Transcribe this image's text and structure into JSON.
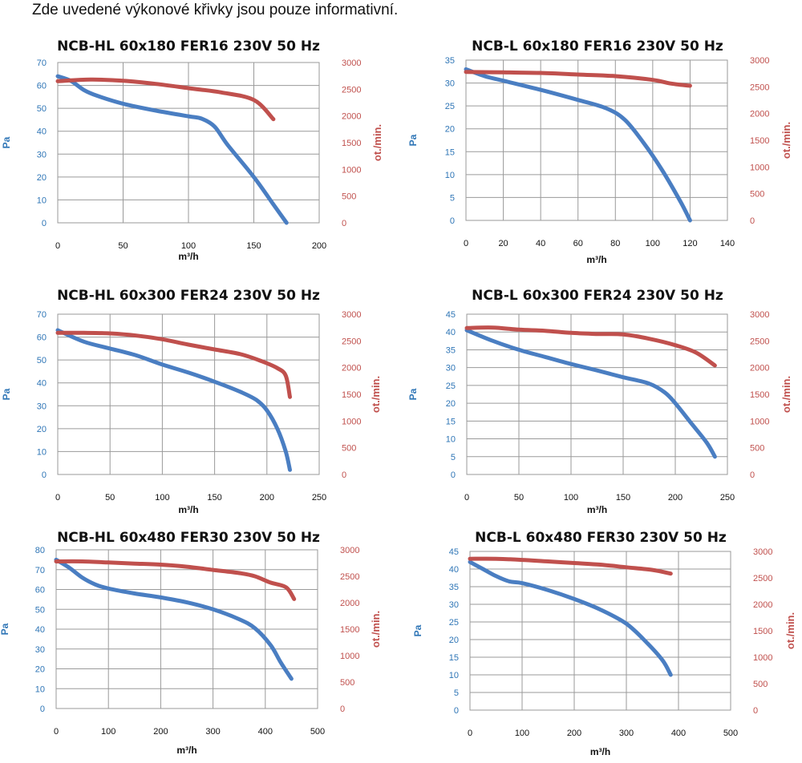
{
  "note": "Zde uvedené výkonové křivky jsou pouze informativní.",
  "colors": {
    "pressure": "#4a7ec2",
    "speed": "#c0504d",
    "grid": "#9a9a9a",
    "plot_bg": "#ffffff"
  },
  "chart_data": [
    {
      "type": "line",
      "title": "NCB-HL 60x180 FER16 230V 50 Hz",
      "xlabel": "m³/h",
      "ylabel": "Pa",
      "y2label": "ot./min.",
      "xlim": [
        0,
        200
      ],
      "ylim": [
        0,
        70
      ],
      "y2lim": [
        0,
        3000
      ],
      "xticks": [
        0,
        50,
        100,
        150,
        200
      ],
      "yticks": [
        0,
        10,
        20,
        30,
        40,
        50,
        60,
        70
      ],
      "y2ticks": [
        0,
        500,
        1000,
        1500,
        2000,
        2500,
        3000
      ],
      "grid": true,
      "series": [
        {
          "axis": "left",
          "x": [
            0,
            10,
            20,
            30,
            50,
            75,
            100,
            110,
            120,
            130,
            150,
            165,
            175
          ],
          "y": [
            64,
            62,
            58,
            55.5,
            52,
            49,
            46.5,
            45.5,
            42,
            34,
            20,
            8,
            0
          ]
        },
        {
          "axis": "right",
          "x": [
            0,
            25,
            50,
            75,
            100,
            125,
            150,
            165
          ],
          "y": [
            2650,
            2680,
            2660,
            2600,
            2520,
            2440,
            2300,
            1940
          ]
        }
      ]
    },
    {
      "type": "line",
      "title": "NCB-L 60x180 FER16 230V 50 Hz",
      "xlabel": "m³/h",
      "ylabel": "Pa",
      "y2label": "ot./min.",
      "xlim": [
        0,
        140
      ],
      "ylim": [
        0,
        35
      ],
      "y2lim": [
        0,
        3000
      ],
      "xticks": [
        0,
        20,
        40,
        60,
        80,
        100,
        120,
        140
      ],
      "yticks": [
        0,
        5,
        10,
        15,
        20,
        25,
        30,
        35
      ],
      "y2ticks": [
        0,
        500,
        1000,
        1500,
        2000,
        2500,
        3000
      ],
      "grid": true,
      "series": [
        {
          "axis": "left",
          "x": [
            0,
            10,
            20,
            40,
            60,
            75,
            85,
            95,
            105,
            115,
            120
          ],
          "y": [
            33,
            31.5,
            30.5,
            28.5,
            26.3,
            24.5,
            22,
            17,
            11,
            4,
            0
          ]
        },
        {
          "axis": "right",
          "x": [
            0,
            20,
            40,
            60,
            80,
            100,
            110,
            120
          ],
          "y": [
            2780,
            2770,
            2760,
            2730,
            2700,
            2630,
            2560,
            2520
          ]
        }
      ]
    },
    {
      "type": "line",
      "title": "NCB-HL 60x300 FER24 230V 50 Hz",
      "xlabel": "m³/h",
      "ylabel": "Pa",
      "y2label": "ot./min.",
      "xlim": [
        0,
        250
      ],
      "ylim": [
        0,
        70
      ],
      "y2lim": [
        0,
        3000
      ],
      "xticks": [
        0,
        50,
        100,
        150,
        200,
        250
      ],
      "yticks": [
        0,
        10,
        20,
        30,
        40,
        50,
        60,
        70
      ],
      "y2ticks": [
        0,
        500,
        1000,
        1500,
        2000,
        2500,
        3000
      ],
      "grid": true,
      "series": [
        {
          "axis": "left",
          "x": [
            0,
            25,
            50,
            75,
            100,
            125,
            150,
            175,
            190,
            200,
            210,
            218,
            222
          ],
          "y": [
            63,
            58,
            55,
            52,
            48,
            44.5,
            40.5,
            36,
            32.5,
            28,
            20,
            10,
            2
          ]
        },
        {
          "axis": "right",
          "x": [
            0,
            25,
            50,
            75,
            100,
            125,
            150,
            175,
            195,
            210,
            218,
            222
          ],
          "y": [
            2650,
            2650,
            2640,
            2600,
            2530,
            2430,
            2340,
            2250,
            2120,
            1990,
            1850,
            1450
          ]
        }
      ]
    },
    {
      "type": "line",
      "title": "NCB-L 60x300 FER24 230V 50 Hz",
      "xlabel": "m³/h",
      "ylabel": "Pa",
      "y2label": "ot./min.",
      "xlim": [
        0,
        250
      ],
      "ylim": [
        0,
        45
      ],
      "y2lim": [
        0,
        3000
      ],
      "xticks": [
        0,
        50,
        100,
        150,
        200,
        250
      ],
      "yticks": [
        0,
        5,
        10,
        15,
        20,
        25,
        30,
        35,
        40,
        45
      ],
      "y2ticks": [
        0,
        500,
        1000,
        1500,
        2000,
        2500,
        3000
      ],
      "grid": true,
      "series": [
        {
          "axis": "left",
          "x": [
            0,
            25,
            50,
            75,
            100,
            125,
            150,
            175,
            190,
            200,
            215,
            230,
            238
          ],
          "y": [
            40.5,
            37.5,
            35,
            33,
            31,
            29.2,
            27.3,
            25.5,
            23,
            20,
            14.5,
            9,
            5
          ]
        },
        {
          "axis": "right",
          "x": [
            0,
            25,
            50,
            75,
            100,
            125,
            150,
            175,
            200,
            220,
            238
          ],
          "y": [
            2740,
            2750,
            2710,
            2690,
            2650,
            2630,
            2620,
            2540,
            2420,
            2280,
            2040
          ]
        }
      ]
    },
    {
      "type": "line",
      "title": "NCB-HL 60x480 FER30 230V 50 Hz",
      "xlabel": "m³/h",
      "ylabel": "Pa",
      "y2label": "ot./min.",
      "xlim": [
        0,
        500
      ],
      "ylim": [
        0,
        80
      ],
      "y2lim": [
        0,
        3000
      ],
      "xticks": [
        0,
        100,
        200,
        300,
        400,
        500
      ],
      "yticks": [
        0,
        10,
        20,
        30,
        40,
        50,
        60,
        70,
        80
      ],
      "y2ticks": [
        0,
        500,
        1000,
        1500,
        2000,
        2500,
        3000
      ],
      "grid": true,
      "series": [
        {
          "axis": "left",
          "x": [
            0,
            25,
            50,
            75,
            100,
            150,
            200,
            250,
            300,
            350,
            380,
            410,
            430,
            450
          ],
          "y": [
            75,
            71,
            66,
            62.5,
            60.5,
            58,
            56,
            53.5,
            50,
            45,
            40.5,
            32,
            23,
            15
          ]
        },
        {
          "axis": "right",
          "x": [
            0,
            50,
            100,
            150,
            200,
            250,
            300,
            350,
            380,
            410,
            440,
            455
          ],
          "y": [
            2780,
            2780,
            2760,
            2740,
            2720,
            2680,
            2620,
            2560,
            2500,
            2380,
            2290,
            2070
          ]
        }
      ]
    },
    {
      "type": "line",
      "title": "NCB-L 60x480 FER30 230V 50 Hz",
      "xlabel": "m³/h",
      "ylabel": "Pa",
      "y2label": "ot./min.",
      "xlim": [
        0,
        500
      ],
      "ylim": [
        0,
        45
      ],
      "y2lim": [
        0,
        3000
      ],
      "xticks": [
        0,
        100,
        200,
        300,
        400,
        500
      ],
      "yticks": [
        0,
        5,
        10,
        15,
        20,
        25,
        30,
        35,
        40,
        45
      ],
      "y2ticks": [
        0,
        500,
        1000,
        1500,
        2000,
        2500,
        3000
      ],
      "grid": true,
      "series": [
        {
          "axis": "left",
          "x": [
            0,
            25,
            50,
            75,
            100,
            150,
            200,
            250,
            300,
            340,
            370,
            385
          ],
          "y": [
            42,
            40,
            38,
            36.5,
            36,
            34,
            31.5,
            28.5,
            24.5,
            19,
            14,
            10
          ]
        },
        {
          "axis": "right",
          "x": [
            0,
            50,
            100,
            150,
            200,
            250,
            300,
            350,
            385
          ],
          "y": [
            2860,
            2860,
            2840,
            2810,
            2780,
            2750,
            2700,
            2650,
            2580
          ]
        }
      ]
    }
  ]
}
